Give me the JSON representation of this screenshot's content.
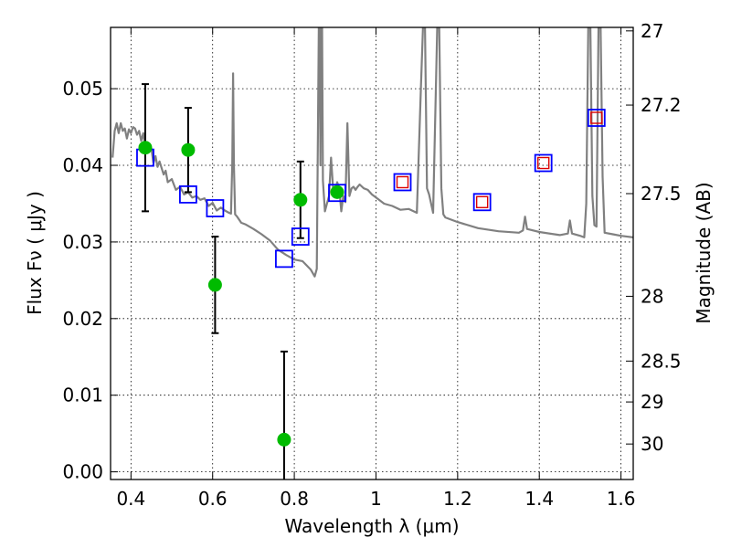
{
  "chart_data": {
    "type": "scatter",
    "xlabel": "Wavelength  λ (μm)",
    "ylabel": "Flux  Fν  ( μJy )",
    "ylabel_right": "Magnitude (AB)",
    "xlim": [
      0.35,
      1.63
    ],
    "ylim": [
      -0.001,
      0.058
    ],
    "grid": true,
    "x_ticks": [
      0.4,
      0.6,
      0.8,
      1.0,
      1.2,
      1.4,
      1.6
    ],
    "x_tick_labels": [
      "0.4",
      "0.6",
      "0.8",
      "1",
      "1.2",
      "1.4",
      "1.6"
    ],
    "y_ticks": [
      0.0,
      0.01,
      0.02,
      0.03,
      0.04,
      0.05
    ],
    "y_tick_labels": [
      "0.00",
      "0.01",
      "0.02",
      "0.03",
      "0.04",
      "0.05"
    ],
    "right_ticks": [
      {
        "mag": 27,
        "label": "27"
      },
      {
        "mag": 27.2,
        "label": "27.2"
      },
      {
        "mag": 27.5,
        "label": "27.5"
      },
      {
        "mag": 28,
        "label": "28"
      },
      {
        "mag": 28.5,
        "label": "28.5"
      },
      {
        "mag": 29,
        "label": "29"
      },
      {
        "mag": 30,
        "label": "30"
      }
    ],
    "series": [
      {
        "name": "observed",
        "style": "green-dot-errorbar",
        "color": "#00bb00",
        "points": [
          {
            "x": 0.435,
            "y": 0.0423,
            "err": 0.0083
          },
          {
            "x": 0.54,
            "y": 0.042,
            "err": 0.0055
          },
          {
            "x": 0.606,
            "y": 0.0244,
            "err": 0.0063
          },
          {
            "x": 0.775,
            "y": 0.0042,
            "err": 0.0115
          },
          {
            "x": 0.815,
            "y": 0.0355,
            "err": 0.005
          },
          {
            "x": 0.905,
            "y": 0.0365,
            "err": 0
          }
        ]
      },
      {
        "name": "model_bandpass",
        "style": "blue-square",
        "color": "#0000ff",
        "points": [
          {
            "x": 0.435,
            "y": 0.041
          },
          {
            "x": 0.54,
            "y": 0.0362
          },
          {
            "x": 0.606,
            "y": 0.0344
          },
          {
            "x": 0.775,
            "y": 0.0278
          },
          {
            "x": 0.815,
            "y": 0.0307
          },
          {
            "x": 0.905,
            "y": 0.0364
          },
          {
            "x": 1.065,
            "y": 0.0378
          },
          {
            "x": 1.26,
            "y": 0.0352
          },
          {
            "x": 1.41,
            "y": 0.0403
          },
          {
            "x": 1.54,
            "y": 0.0462
          }
        ]
      },
      {
        "name": "model_red",
        "style": "red-square",
        "color": "#dd0000",
        "points": [
          {
            "x": 1.065,
            "y": 0.0378
          },
          {
            "x": 1.26,
            "y": 0.0352
          },
          {
            "x": 1.41,
            "y": 0.0403
          },
          {
            "x": 1.54,
            "y": 0.0462
          }
        ]
      },
      {
        "name": "template_spectrum",
        "style": "gray-line",
        "color": "#808080",
        "x": [
          0.355,
          0.36,
          0.365,
          0.37,
          0.375,
          0.38,
          0.385,
          0.39,
          0.395,
          0.4,
          0.405,
          0.41,
          0.415,
          0.42,
          0.425,
          0.43,
          0.435,
          0.44,
          0.445,
          0.45,
          0.455,
          0.46,
          0.465,
          0.47,
          0.48,
          0.485,
          0.49,
          0.5,
          0.51,
          0.52,
          0.53,
          0.54,
          0.55,
          0.56,
          0.57,
          0.58,
          0.59,
          0.6,
          0.61,
          0.62,
          0.63,
          0.64,
          0.645,
          0.648,
          0.65,
          0.652,
          0.655,
          0.66,
          0.67,
          0.68,
          0.7,
          0.72,
          0.74,
          0.76,
          0.78,
          0.8,
          0.82,
          0.84,
          0.85,
          0.855,
          0.86,
          0.862,
          0.864,
          0.866,
          0.868,
          0.87,
          0.875,
          0.88,
          0.885,
          0.89,
          0.895,
          0.9,
          0.905,
          0.91,
          0.915,
          0.92,
          0.925,
          0.93,
          0.935,
          0.94,
          0.945,
          0.95,
          0.955,
          0.96,
          0.97,
          0.98,
          0.99,
          1.0,
          1.02,
          1.04,
          1.06,
          1.08,
          1.1,
          1.11,
          1.115,
          1.12,
          1.125,
          1.13,
          1.14,
          1.15,
          1.155,
          1.16,
          1.165,
          1.17,
          1.2,
          1.25,
          1.3,
          1.35,
          1.36,
          1.365,
          1.37,
          1.4,
          1.45,
          1.47,
          1.475,
          1.48,
          1.5,
          1.51,
          1.515,
          1.52,
          1.525,
          1.53,
          1.535,
          1.54,
          1.545,
          1.55,
          1.555,
          1.56,
          1.58,
          1.6,
          1.63
        ],
        "y": [
          0.041,
          0.0445,
          0.0455,
          0.0442,
          0.0455,
          0.0445,
          0.0448,
          0.0435,
          0.0447,
          0.0442,
          0.045,
          0.0448,
          0.044,
          0.0445,
          0.0432,
          0.0442,
          0.0423,
          0.043,
          0.0418,
          0.0422,
          0.0403,
          0.0412,
          0.0398,
          0.0405,
          0.0388,
          0.0393,
          0.0378,
          0.0382,
          0.0368,
          0.0372,
          0.0362,
          0.0365,
          0.0358,
          0.036,
          0.0355,
          0.0357,
          0.0347,
          0.0351,
          0.0341,
          0.0345,
          0.0341,
          0.0338,
          0.0337,
          0.0402,
          0.052,
          0.04,
          0.0336,
          0.0333,
          0.0325,
          0.0323,
          0.0317,
          0.031,
          0.0302,
          0.029,
          0.0283,
          0.0277,
          0.0275,
          0.0264,
          0.0255,
          0.0265,
          0.058,
          0.058,
          0.04,
          0.058,
          0.058,
          0.038,
          0.034,
          0.035,
          0.036,
          0.041,
          0.037,
          0.0365,
          0.0378,
          0.037,
          0.034,
          0.036,
          0.0352,
          0.0455,
          0.036,
          0.037,
          0.0372,
          0.0368,
          0.0372,
          0.0375,
          0.037,
          0.0368,
          0.0362,
          0.0358,
          0.035,
          0.0347,
          0.0342,
          0.0343,
          0.0338,
          0.05,
          0.058,
          0.058,
          0.037,
          0.0362,
          0.0338,
          0.058,
          0.058,
          0.037,
          0.0336,
          0.0332,
          0.0326,
          0.0318,
          0.0314,
          0.0312,
          0.0315,
          0.0333,
          0.0317,
          0.0313,
          0.0309,
          0.0311,
          0.0328,
          0.0311,
          0.0308,
          0.0306,
          0.035,
          0.058,
          0.058,
          0.036,
          0.0322,
          0.032,
          0.058,
          0.058,
          0.0385,
          0.0312,
          0.031,
          0.0308,
          0.0306
        ]
      }
    ]
  }
}
